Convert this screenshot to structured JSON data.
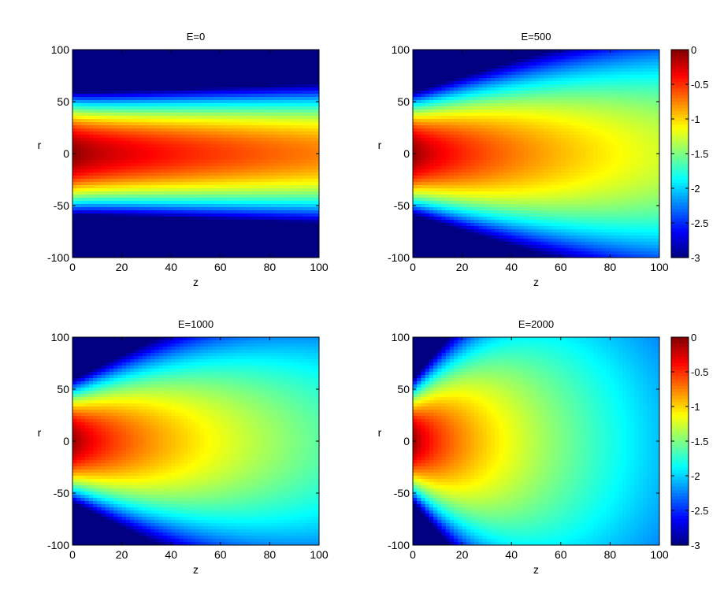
{
  "chart_data": [
    {
      "type": "heatmap",
      "title": "E=0",
      "xlabel": "z",
      "ylabel": "r",
      "xlim": [
        0,
        100
      ],
      "ylim": [
        -100,
        100
      ],
      "xticks": [
        "0",
        "20",
        "40",
        "60",
        "80",
        "100"
      ],
      "yticks": [
        "100",
        "50",
        "0",
        "-50",
        "-100"
      ],
      "field": {
        "E": 0,
        "peak_at_z0": 0,
        "peak_at_z100": -0.75,
        "sigma0": 40,
        "sigma_growth": 0.12,
        "radial_decay": 0
      },
      "colorbar": false
    },
    {
      "type": "heatmap",
      "title": "E=500",
      "xlabel": "z",
      "ylabel": "r",
      "xlim": [
        0,
        100
      ],
      "ylim": [
        -100,
        100
      ],
      "xticks": [
        "0",
        "20",
        "40",
        "60",
        "80",
        "100"
      ],
      "yticks": [
        "100",
        "50",
        "0",
        "-50",
        "-100"
      ],
      "field": {
        "E": 500,
        "peak_at_z0": 0,
        "peak_at_z100": -1.25,
        "sigma0": 40,
        "sigma_growth": 0.7,
        "radial_decay": 0
      },
      "colorbar": true,
      "colorbar_range": [
        -3,
        0
      ],
      "colorbar_ticks": [
        "0",
        "-0.5",
        "-1",
        "-1.5",
        "-2",
        "-2.5",
        "-3"
      ]
    },
    {
      "type": "heatmap",
      "title": "E=1000",
      "xlabel": "z",
      "ylabel": "r",
      "xlim": [
        0,
        100
      ],
      "ylim": [
        -100,
        100
      ],
      "xticks": [
        "0",
        "20",
        "40",
        "60",
        "80",
        "100"
      ],
      "yticks": [
        "100",
        "50",
        "0",
        "-50",
        "-100"
      ],
      "field": {
        "E": 1000,
        "peak_at_z0": 0,
        "peak_at_z100": -1.6,
        "sigma0": 40,
        "sigma_growth": 1.1,
        "radial_decay": 0
      },
      "colorbar": false
    },
    {
      "type": "heatmap",
      "title": "E=2000",
      "xlabel": "z",
      "ylabel": "r",
      "xlim": [
        0,
        100
      ],
      "ylim": [
        -100,
        100
      ],
      "xticks": [
        "0",
        "20",
        "40",
        "60",
        "80",
        "100"
      ],
      "yticks": [
        "100",
        "50",
        "0",
        "-50",
        "-100"
      ],
      "field": {
        "E": 2000,
        "peak_at_z0": 0,
        "peak_at_z100": -2.05,
        "sigma0": 40,
        "sigma_growth": 2.4,
        "radial_decay": 0
      },
      "colorbar": true,
      "colorbar_range": [
        -3,
        0
      ],
      "colorbar_ticks": [
        "0",
        "-0.5",
        "-1",
        "-1.5",
        "-2",
        "-2.5",
        "-3"
      ]
    }
  ],
  "colormap": "jet"
}
